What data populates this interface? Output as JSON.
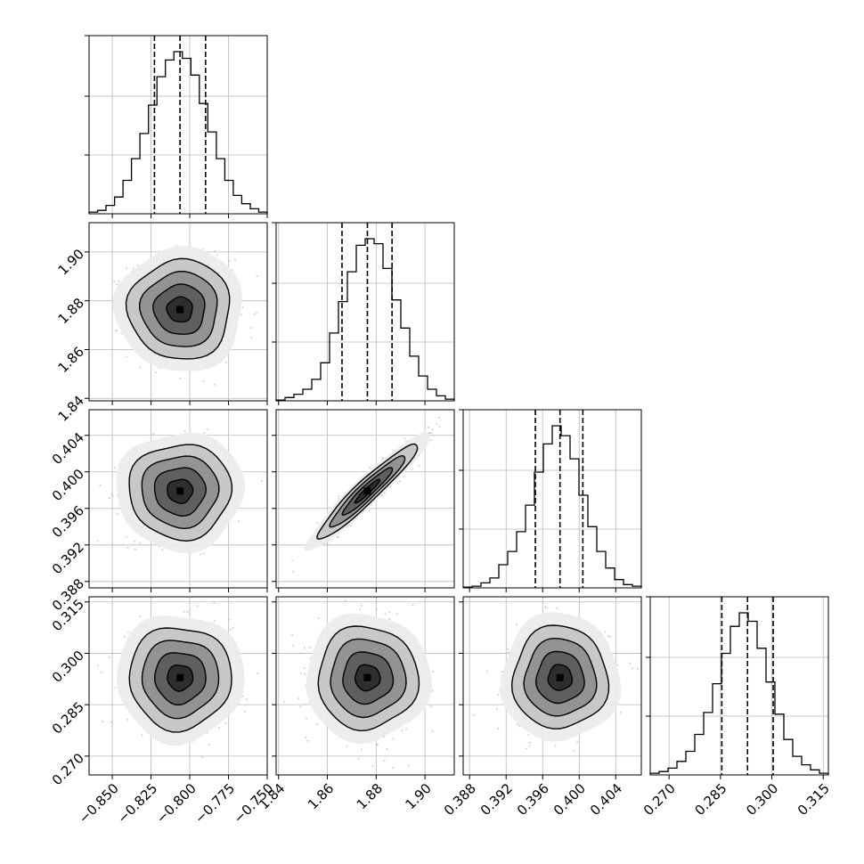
{
  "chart_data": {
    "type": "corner",
    "parameters": [
      {
        "ticks": [
          -0.85,
          -0.825,
          -0.8,
          -0.775,
          -0.75
        ],
        "tick_labels": [
          "−0.850",
          "−0.825",
          "−0.800",
          "−0.775",
          "−0.750"
        ],
        "range": [
          -0.865,
          -0.75
        ],
        "quantiles": [
          -0.8228,
          -0.8063,
          -0.7898
        ]
      },
      {
        "ticks": [
          1.84,
          1.86,
          1.88,
          1.9
        ],
        "tick_labels": [
          "1.84",
          "1.86",
          "1.88",
          "1.90"
        ],
        "range": [
          1.839,
          1.912
        ],
        "quantiles": [
          1.866,
          1.8764,
          1.8865
        ]
      },
      {
        "ticks": [
          0.388,
          0.392,
          0.396,
          0.4,
          0.404
        ],
        "tick_labels": [
          "0.388",
          "0.392",
          "0.396",
          "0.400",
          "0.404"
        ],
        "range": [
          0.3873,
          0.4068
        ],
        "quantiles": [
          0.3952,
          0.3979,
          0.4004
        ]
      },
      {
        "ticks": [
          0.27,
          0.285,
          0.3,
          0.315
        ],
        "tick_labels": [
          "0.270",
          "0.285",
          "0.300",
          "0.315"
        ],
        "range": [
          0.2645,
          0.3165
        ],
        "quantiles": [
          0.2854,
          0.2929,
          0.3004
        ]
      }
    ],
    "histograms": [
      [
        0.01,
        0.02,
        0.05,
        0.1,
        0.2,
        0.33,
        0.48,
        0.65,
        0.82,
        0.92,
        0.97,
        0.93,
        0.83,
        0.66,
        0.49,
        0.33,
        0.2,
        0.11,
        0.06,
        0.03,
        0.01
      ],
      [
        0.005,
        0.02,
        0.04,
        0.07,
        0.13,
        0.23,
        0.41,
        0.6,
        0.78,
        0.94,
        0.98,
        0.95,
        0.8,
        0.61,
        0.44,
        0.27,
        0.15,
        0.07,
        0.03,
        0.01
      ],
      [
        0.005,
        0.01,
        0.03,
        0.06,
        0.14,
        0.22,
        0.34,
        0.5,
        0.7,
        0.87,
        0.98,
        0.92,
        0.78,
        0.56,
        0.37,
        0.22,
        0.12,
        0.05,
        0.02,
        0.01
      ],
      [
        0.01,
        0.02,
        0.04,
        0.08,
        0.14,
        0.24,
        0.37,
        0.54,
        0.72,
        0.88,
        0.96,
        0.91,
        0.75,
        0.55,
        0.36,
        0.21,
        0.11,
        0.06,
        0.03,
        0.01
      ]
    ],
    "correlations": [
      [
        1,
        0,
        0,
        0
      ],
      [
        0,
        1,
        0.95,
        0
      ],
      [
        0,
        0.95,
        1,
        0
      ],
      [
        0,
        0,
        0,
        1
      ]
    ],
    "density_contours": true,
    "grid": true
  }
}
